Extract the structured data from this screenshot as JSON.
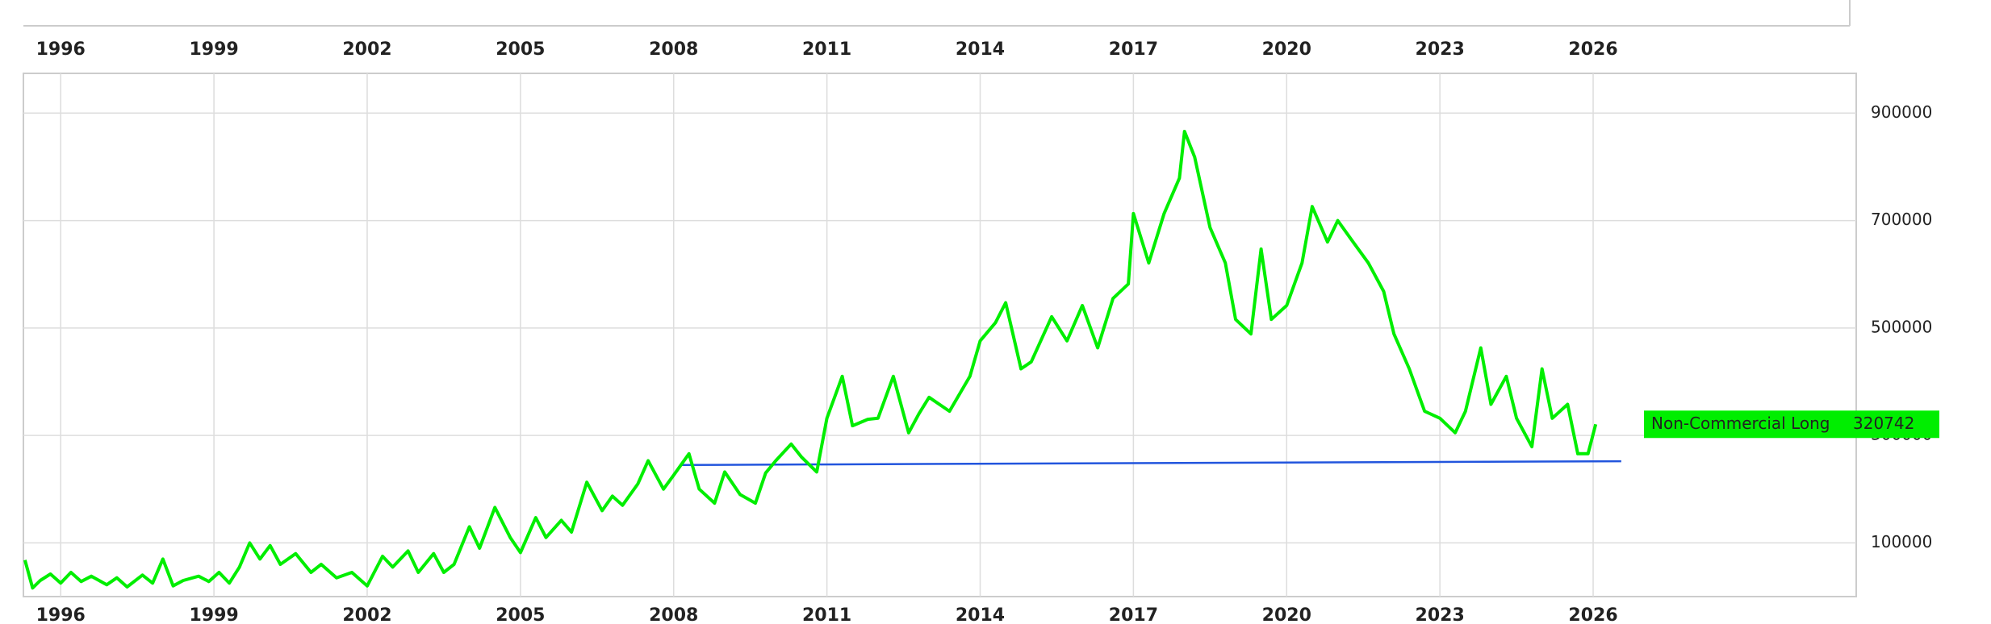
{
  "chart_data": {
    "type": "line",
    "xlim": [
      1995.27,
      2031.15
    ],
    "xticks": [
      1996,
      1999,
      2002,
      2005,
      2008,
      2011,
      2014,
      2017,
      2020,
      2023,
      2026
    ],
    "ylim": [
      0,
      974000
    ],
    "yticks": [
      100000,
      300000,
      500000,
      700000,
      900000
    ],
    "grid": true,
    "series": [
      {
        "name": "Non-Commercial Long",
        "color": "#00ee00",
        "x": [
          1995.3,
          1995.45,
          1995.6,
          1995.8,
          1996.0,
          1996.2,
          1996.4,
          1996.6,
          1996.9,
          1997.1,
          1997.3,
          1997.6,
          1997.8,
          1998.0,
          1998.2,
          1998.4,
          1998.7,
          1998.9,
          1999.1,
          1999.3,
          1999.5,
          1999.7,
          1999.9,
          2000.1,
          2000.3,
          2000.6,
          2000.9,
          2001.1,
          2001.4,
          2001.7,
          2002.0,
          2002.3,
          2002.5,
          2002.8,
          2003.0,
          2003.3,
          2003.5,
          2003.7,
          2004.0,
          2004.2,
          2004.5,
          2004.8,
          2005.0,
          2005.3,
          2005.5,
          2005.8,
          2006.0,
          2006.3,
          2006.6,
          2006.8,
          2007.0,
          2007.3,
          2007.5,
          2007.8,
          2008.0,
          2008.3,
          2008.5,
          2008.8,
          2009.0,
          2009.3,
          2009.6,
          2009.8,
          2010.0,
          2010.3,
          2010.5,
          2010.8,
          2011.0,
          2011.3,
          2011.5,
          2011.8,
          2012.0,
          2012.3,
          2012.6,
          2012.8,
          2013.0,
          2013.4,
          2013.8,
          2014.0,
          2014.3,
          2014.5,
          2014.8,
          2015.0,
          2015.4,
          2015.7,
          2016.0,
          2016.3,
          2016.6,
          2016.9,
          2017.0,
          2017.3,
          2017.6,
          2017.9,
          2018.0,
          2018.2,
          2018.5,
          2018.8,
          2019.0,
          2019.3,
          2019.5,
          2019.7,
          2020.0,
          2020.3,
          2020.5,
          2020.8,
          2021.0,
          2021.3,
          2021.6,
          2021.9,
          2022.1,
          2022.4,
          2022.7,
          2023.0,
          2023.3,
          2023.5,
          2023.8,
          2024.0,
          2024.3,
          2024.5,
          2024.8,
          2025.0,
          2025.2,
          2025.5,
          2025.7,
          2025.9,
          2026.05
        ],
        "values": [
          68000,
          16000,
          30000,
          42000,
          25000,
          45000,
          28000,
          38000,
          22000,
          35000,
          18000,
          40000,
          25000,
          70000,
          20000,
          30000,
          38000,
          28000,
          45000,
          25000,
          55000,
          100000,
          70000,
          95000,
          60000,
          80000,
          45000,
          60000,
          35000,
          45000,
          20000,
          75000,
          55000,
          85000,
          45000,
          80000,
          45000,
          60000,
          130000,
          90000,
          166000,
          110000,
          82000,
          147000,
          110000,
          142000,
          120000,
          213000,
          160000,
          187000,
          170000,
          210000,
          253000,
          200000,
          226000,
          266000,
          200000,
          174000,
          232000,
          190000,
          174000,
          230000,
          253000,
          284000,
          260000,
          232000,
          332000,
          410000,
          318000,
          330000,
          332000,
          410000,
          305000,
          340000,
          371000,
          345000,
          410000,
          476000,
          510000,
          547000,
          424000,
          437000,
          521000,
          476000,
          542000,
          463000,
          555000,
          582000,
          713000,
          621000,
          713000,
          779000,
          866000,
          818000,
          687000,
          621000,
          516000,
          489000,
          647000,
          516000,
          542000,
          621000,
          726000,
          660000,
          700000,
          660000,
          621000,
          568000,
          489000,
          424000,
          345000,
          332000,
          305000,
          345000,
          463000,
          358000,
          410000,
          332000,
          279000,
          424000,
          332000,
          358000,
          266000,
          266000,
          320742
        ]
      }
    ],
    "reference_line": {
      "x": [
        2008.15,
        2026.55
      ],
      "values": [
        245000,
        252000
      ],
      "color": "#2255dd"
    }
  }
}
